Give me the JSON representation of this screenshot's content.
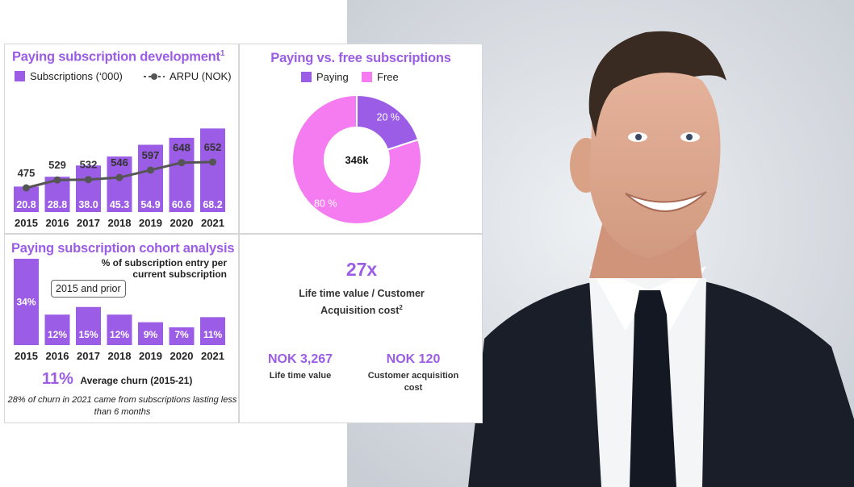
{
  "colors": {
    "purple": "#9b5de5",
    "pink": "#f47cf0",
    "line": "#555555",
    "photo_bg": "#e3e7ec"
  },
  "subscriptions_card": {
    "title": "Paying subscription development",
    "title_sup": "1",
    "legend_bars": "Subscriptions (‘000)",
    "legend_line": "ARPU (NOK)"
  },
  "pie_card": {
    "title": "Paying vs. free subscriptions",
    "legend_paying": "Paying",
    "legend_free": "Free",
    "center_label": "346k"
  },
  "cohort_card": {
    "title": "Paying subscription cohort analysis",
    "note": "% of subscription entry per current subscription",
    "callout": "2015 and prior",
    "churn_value": "11%",
    "churn_label": "Average churn (2015-21)",
    "churn_note": "28% of churn in 2021 came from subscriptions lasting less than 6 months"
  },
  "ltv_card": {
    "headline": "27x",
    "label": "Life time value / Customer Acquisition cost",
    "label_sup": "2",
    "ltv_value": "NOK 3,267",
    "ltv_label": "Life time value",
    "cac_value": "NOK 120",
    "cac_label": "Customer acquisition cost"
  },
  "chart_data": [
    {
      "type": "bar",
      "title": "Paying subscription development",
      "categories": [
        "2015",
        "2016",
        "2017",
        "2018",
        "2019",
        "2020",
        "2021"
      ],
      "series": [
        {
          "name": "Subscriptions (‘000)",
          "values": [
            20.8,
            28.8,
            38.0,
            45.3,
            54.9,
            60.6,
            68.2
          ],
          "labels": [
            "20.8",
            "28.8",
            "38.0",
            "45.3",
            "54.9",
            "60.6",
            "68.2"
          ]
        },
        {
          "name": "ARPU (NOK)",
          "type": "line",
          "values": [
            475,
            529,
            532,
            546,
            597,
            648,
            652
          ],
          "labels": [
            "475",
            "529",
            "532",
            "546",
            "597",
            "648",
            "652"
          ]
        }
      ]
    },
    {
      "type": "pie",
      "title": "Paying vs. free subscriptions",
      "categories": [
        "Paying",
        "Free"
      ],
      "values": [
        20,
        80
      ],
      "labels": [
        "20 %",
        "80 %"
      ],
      "center_label": "346k"
    },
    {
      "type": "bar",
      "title": "Paying subscription cohort analysis",
      "categories": [
        "2015",
        "2016",
        "2017",
        "2018",
        "2019",
        "2020",
        "2021"
      ],
      "values": [
        34,
        12,
        15,
        12,
        9,
        7,
        11
      ],
      "labels": [
        "34%",
        "12%",
        "15%",
        "12%",
        "9%",
        "7%",
        "11%"
      ]
    }
  ]
}
